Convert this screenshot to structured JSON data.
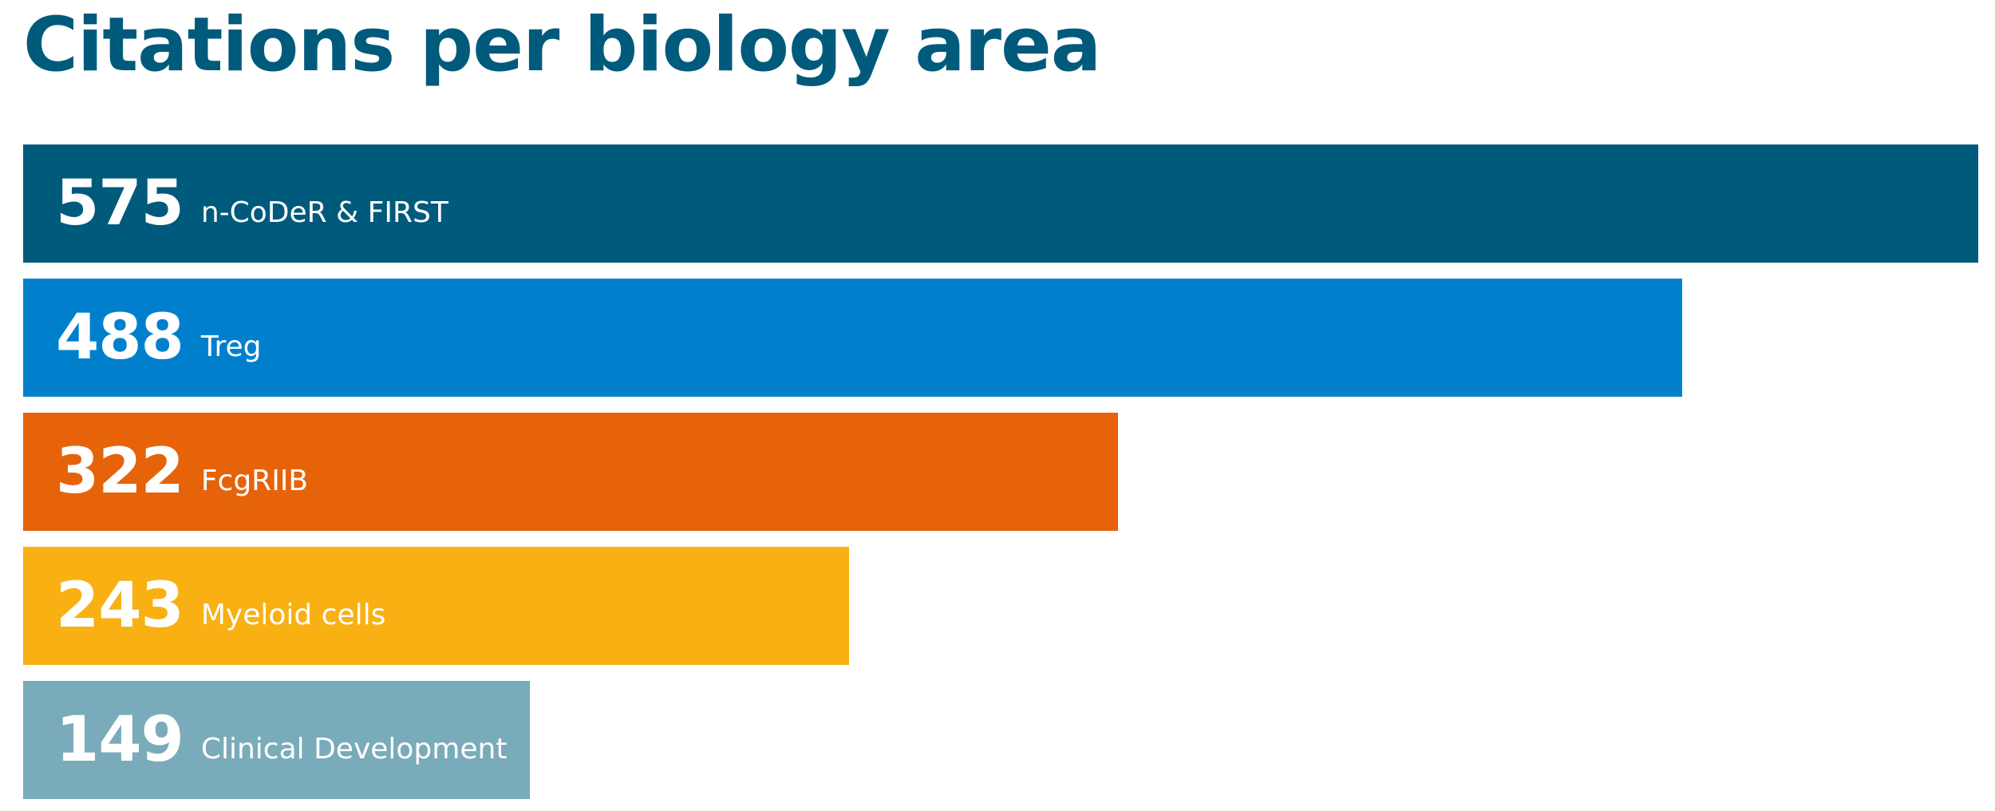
{
  "chart_data": {
    "type": "bar",
    "orientation": "horizontal",
    "title": "Citations per biology area",
    "categories": [
      "n-CoDeR & FIRST",
      "Treg",
      "FcgRIIB",
      "Myeloid cells",
      "Clinical Development"
    ],
    "values": [
      575,
      488,
      322,
      243,
      149
    ],
    "colors": [
      "#005a7c",
      "#0080cc",
      "#e6630a",
      "#f8b013",
      "#7aabba"
    ],
    "xlim": [
      0,
      575
    ],
    "grid": false,
    "legend": "none"
  }
}
